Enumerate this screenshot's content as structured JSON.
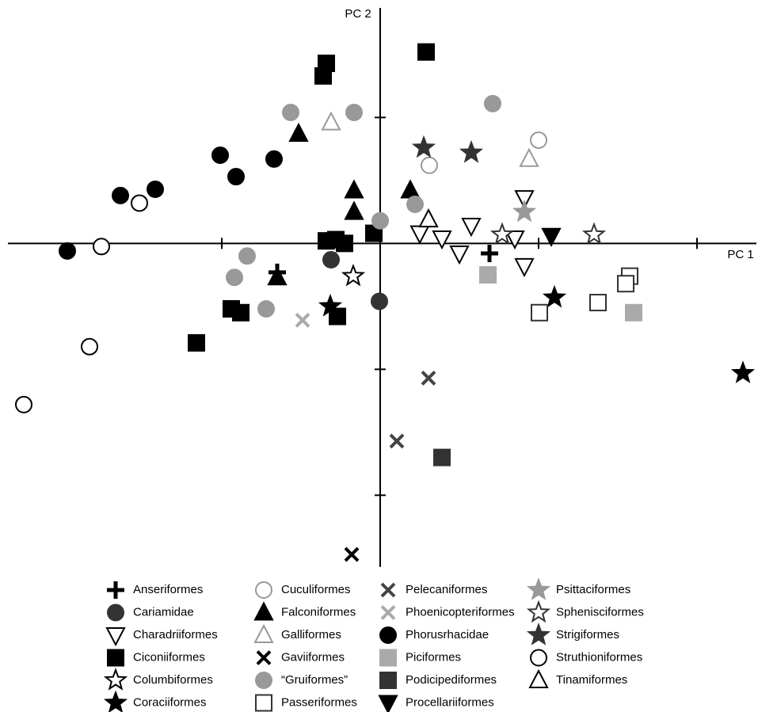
{
  "chart_data": {
    "type": "scatter",
    "x_label": "PC 1",
    "y_label": "PC 2",
    "xlim": [
      -2.35,
      2.375
    ],
    "ylim": [
      -2.6,
      1.87
    ],
    "xticks": [
      -1,
      1,
      2
    ],
    "yticks": [
      1,
      -1,
      -2
    ],
    "series": [
      {
        "name": "Anseriformes",
        "marker": "plus",
        "filled": true,
        "color": "#000000",
        "x": [
          0.69,
          -0.65
        ],
        "y": [
          -0.08,
          -0.23
        ]
      },
      {
        "name": "Cariamidae",
        "marker": "circle",
        "filled": true,
        "color": "#333333",
        "x": [
          -0.31,
          -0.005
        ],
        "y": [
          -0.13,
          -0.46
        ]
      },
      {
        "name": "Charadriiformes",
        "marker": "triangle-down",
        "filled": false,
        "color": "#000000",
        "x": [
          0.25,
          0.39,
          0.575,
          0.5,
          0.85,
          0.91,
          0.91
        ],
        "y": [
          0.08,
          0.04,
          0.14,
          -0.08,
          0.04,
          0.36,
          -0.18
        ]
      },
      {
        "name": "Ciconiiformes",
        "marker": "square",
        "filled": true,
        "color": "#000000",
        "x": [
          -0.34,
          -0.36,
          0.29,
          -0.34,
          -0.28,
          -0.225,
          -0.04,
          -0.94,
          -0.88,
          -0.27,
          -1.16
        ],
        "y": [
          1.43,
          1.33,
          1.52,
          0.02,
          0.03,
          0,
          0.08,
          -0.52,
          -0.55,
          -0.58,
          -0.79
        ]
      },
      {
        "name": "Columbiformes",
        "marker": "star",
        "filled": false,
        "color": "#000000",
        "x": [
          -0.17
        ],
        "y": [
          -0.26
        ]
      },
      {
        "name": "Coraciiformes",
        "marker": "star",
        "filled": true,
        "color": "#000000",
        "x": [
          -0.315,
          1.1,
          2.29
        ],
        "y": [
          -0.5,
          -0.43,
          -1.03
        ]
      },
      {
        "name": "Cuculiformes",
        "marker": "circle",
        "filled": false,
        "color": "#999999",
        "x": [
          0.31,
          1.0
        ],
        "y": [
          0.62,
          0.82
        ]
      },
      {
        "name": "Falconiformes",
        "marker": "triangle-up",
        "filled": true,
        "color": "#000000",
        "x": [
          -0.515,
          -0.165,
          -0.165,
          -0.65,
          0.19
        ],
        "y": [
          0.87,
          0.42,
          0.25,
          -0.27,
          0.42
        ]
      },
      {
        "name": "Galliformes",
        "marker": "triangle-up",
        "filled": false,
        "color": "#999999",
        "x": [
          -0.31,
          0.94
        ],
        "y": [
          0.96,
          0.67
        ]
      },
      {
        "name": "Gaviiformes",
        "marker": "x",
        "filled": true,
        "color": "#000000",
        "x": [
          -0.18
        ],
        "y": [
          -2.47
        ]
      },
      {
        "name": "“Gruiformes”",
        "marker": "circle",
        "filled": true,
        "color": "#999999",
        "x": [
          -0.565,
          -0.165,
          0.71,
          0,
          0.22,
          -0.84,
          -0.92,
          -0.72
        ],
        "y": [
          1.04,
          1.04,
          1.11,
          0.18,
          0.31,
          -0.1,
          -0.27,
          -0.52
        ]
      },
      {
        "name": "Passeriformes",
        "marker": "square",
        "filled": false,
        "color": "#333333",
        "x": [
          1.575,
          1.55,
          1.375,
          1.005
        ],
        "y": [
          -0.26,
          -0.32,
          -0.47,
          -0.55
        ]
      },
      {
        "name": "Pelecaniformes",
        "marker": "x",
        "filled": true,
        "color": "#444444",
        "x": [
          0.305,
          0.105
        ],
        "y": [
          -1.07,
          -1.57
        ]
      },
      {
        "name": "Phoenicopteriformes",
        "marker": "x",
        "filled": true,
        "color": "#aaaaaa",
        "x": [
          -0.49
        ],
        "y": [
          -0.61
        ]
      },
      {
        "name": "Phorusrhacidae",
        "marker": "circle",
        "filled": true,
        "color": "#000000",
        "x": [
          -1.975,
          -1.64,
          -1.42,
          -1.01,
          -0.91,
          -0.67
        ],
        "y": [
          -0.06,
          0.38,
          0.43,
          0.7,
          0.53,
          0.67
        ]
      },
      {
        "name": "Piciformes",
        "marker": "square",
        "filled": true,
        "color": "#aaaaaa",
        "x": [
          0.68,
          1.6
        ],
        "y": [
          -0.25,
          -0.55
        ]
      },
      {
        "name": "Podicipediformes",
        "marker": "square",
        "filled": true,
        "color": "#333333",
        "x": [
          0.39
        ],
        "y": [
          -1.7
        ]
      },
      {
        "name": "Procellariiformes",
        "marker": "triangle-down",
        "filled": true,
        "color": "#000000",
        "x": [
          1.08
        ],
        "y": [
          0.06
        ]
      },
      {
        "name": "Psittaciformes",
        "marker": "star",
        "filled": true,
        "color": "#999999",
        "x": [
          0.91
        ],
        "y": [
          0.25
        ]
      },
      {
        "name": "Sphenisciformes",
        "marker": "star",
        "filled": false,
        "color": "#333333",
        "x": [
          0.77,
          1.35
        ],
        "y": [
          0.07,
          0.07
        ]
      },
      {
        "name": "Strigiformes",
        "marker": "star",
        "filled": true,
        "color": "#333333",
        "x": [
          0.275,
          0.575
        ],
        "y": [
          0.76,
          0.72
        ]
      },
      {
        "name": "Struthioniformes",
        "marker": "circle",
        "filled": false,
        "color": "#000000",
        "x": [
          -1.52,
          -1.76,
          -1.835,
          -2.25
        ],
        "y": [
          0.32,
          -0.025,
          -0.82,
          -1.28
        ]
      },
      {
        "name": "Tinamiformes",
        "marker": "triangle-up",
        "filled": false,
        "color": "#000000",
        "x": [
          0.305
        ],
        "y": [
          0.19
        ]
      }
    ]
  }
}
